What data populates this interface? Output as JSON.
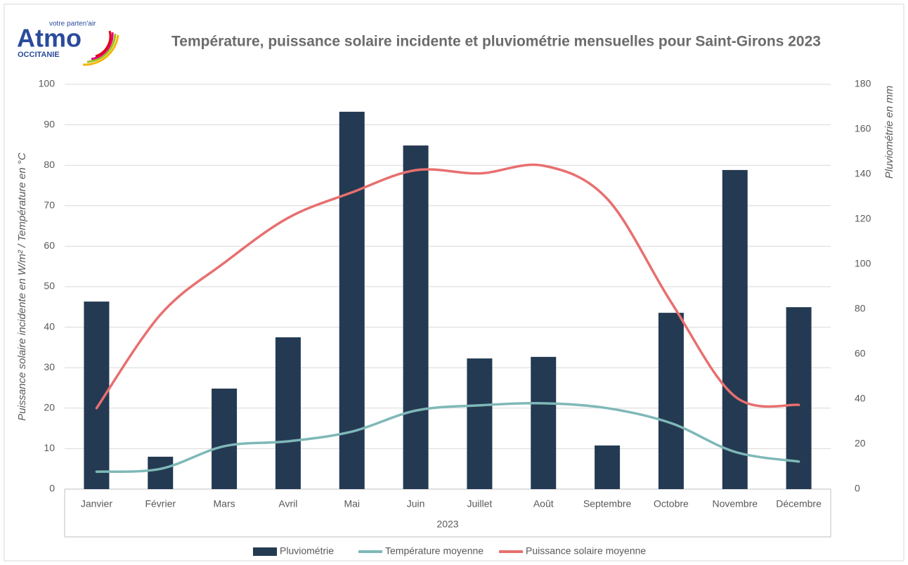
{
  "logo": {
    "name": "Atmo",
    "tagline": "votre parten'air",
    "region": "OCCITANIE"
  },
  "chart_data": {
    "type": "bar-line",
    "title": "Température, puissance solaire incidente et pluviométrie mensuelles pour Saint-Girons 2023",
    "y_label": "Puissance solaire incidente en W/m² / Température en °C",
    "y2_label": "Pluviométrie en mm",
    "x_label": "2023",
    "categories": [
      "Janvier",
      "Février",
      "Mars",
      "Avril",
      "Mai",
      "Juin",
      "Juillet",
      "Août",
      "Septembre",
      "Octobre",
      "Novembre",
      "Décembre"
    ],
    "ylim": [
      0,
      100
    ],
    "yticks": [
      0,
      10,
      20,
      30,
      40,
      50,
      60,
      70,
      80,
      90,
      100
    ],
    "y2lim": [
      0,
      180
    ],
    "y2ticks": [
      0,
      20,
      40,
      60,
      80,
      100,
      120,
      140,
      160,
      180
    ],
    "grid": true,
    "legend": "bottom",
    "series": [
      {
        "name": "Pluviométrie",
        "type": "bar",
        "axis": "y2",
        "color": "#243a52",
        "values": [
          83.4,
          14.4,
          44.7,
          67.5,
          167.8,
          152.8,
          58.1,
          58.8,
          19.4,
          78.4,
          141.9,
          80.9
        ]
      },
      {
        "name": "Température moyenne",
        "type": "line",
        "color": "#7fb8b8",
        "values": [
          4.3,
          5.0,
          10.6,
          11.8,
          14.2,
          19.4,
          20.7,
          21.2,
          20.0,
          16.3,
          9.2,
          6.8
        ]
      },
      {
        "name": "Puissance solaire moyenne",
        "type": "line",
        "color": "#e86f6f",
        "values": [
          20.0,
          43.1,
          55.9,
          67.0,
          73.3,
          78.8,
          78.0,
          79.9,
          71.7,
          46.2,
          22.9,
          20.8
        ]
      }
    ]
  }
}
